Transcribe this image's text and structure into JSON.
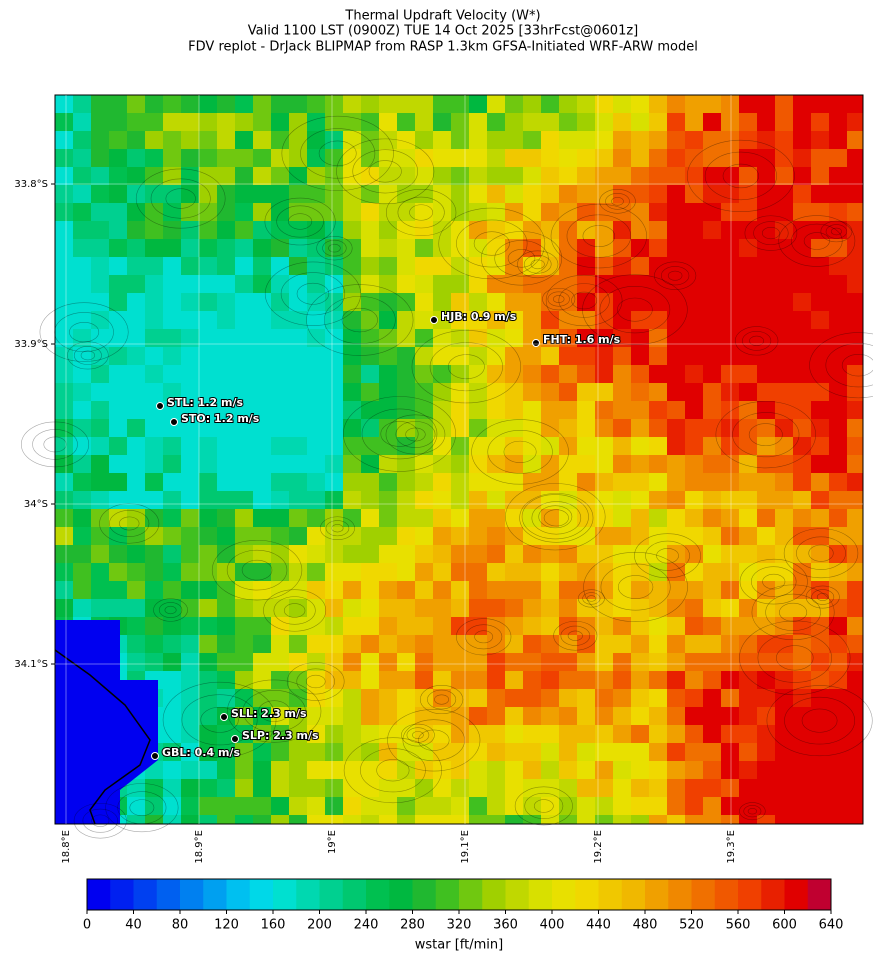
{
  "header": {
    "title": [
      "Thermal Updraft Velocity (W*)",
      "Valid 1100 LST (0900Z) TUE 14 Oct 2025 [33hrFcst@0601z]",
      "FDV replot - DrJack BLIPMAP from RASP 1.3km GFSA-Initiated WRF-ARW model"
    ]
  },
  "map": {
    "lat_labels": [
      "33.8°S",
      "33.9°S",
      "34°S",
      "34.1°S"
    ],
    "lon_labels": [
      "18.8°E",
      "18.9°E",
      "19°E",
      "19.1°E",
      "19.2°E",
      "19.3°E"
    ],
    "stations": [
      "HJB: 0.9 m/s",
      "FHT: 1.6 m/s",
      "STL: 1.2 m/s",
      "STO: 1.2 m/s",
      "SLL: 2.3 m/s",
      "SLP: 2.3 m/s",
      "GBL: 0.4 m/s"
    ]
  },
  "colorbar": {
    "ticks": [
      0,
      40,
      80,
      120,
      160,
      200,
      240,
      280,
      320,
      360,
      400,
      440,
      480,
      520,
      560,
      600,
      640
    ],
    "label": "wstar [ft/min]",
    "colors": [
      "#0000f0",
      "#0020f0",
      "#0040f0",
      "#0060f0",
      "#0080f0",
      "#00a0f0",
      "#00c0f0",
      "#00d8e8",
      "#00e0d0",
      "#00d8b0",
      "#00d090",
      "#00c870",
      "#00c050",
      "#00b840",
      "#20b830",
      "#40c020",
      "#70c810",
      "#a0d000",
      "#c0d800",
      "#d8e000",
      "#e8e000",
      "#f0d800",
      "#f0c800",
      "#f0b800",
      "#f0a000",
      "#f08800",
      "#f07000",
      "#f05800",
      "#f04000",
      "#e82000",
      "#e00000",
      "#c00030"
    ]
  }
}
